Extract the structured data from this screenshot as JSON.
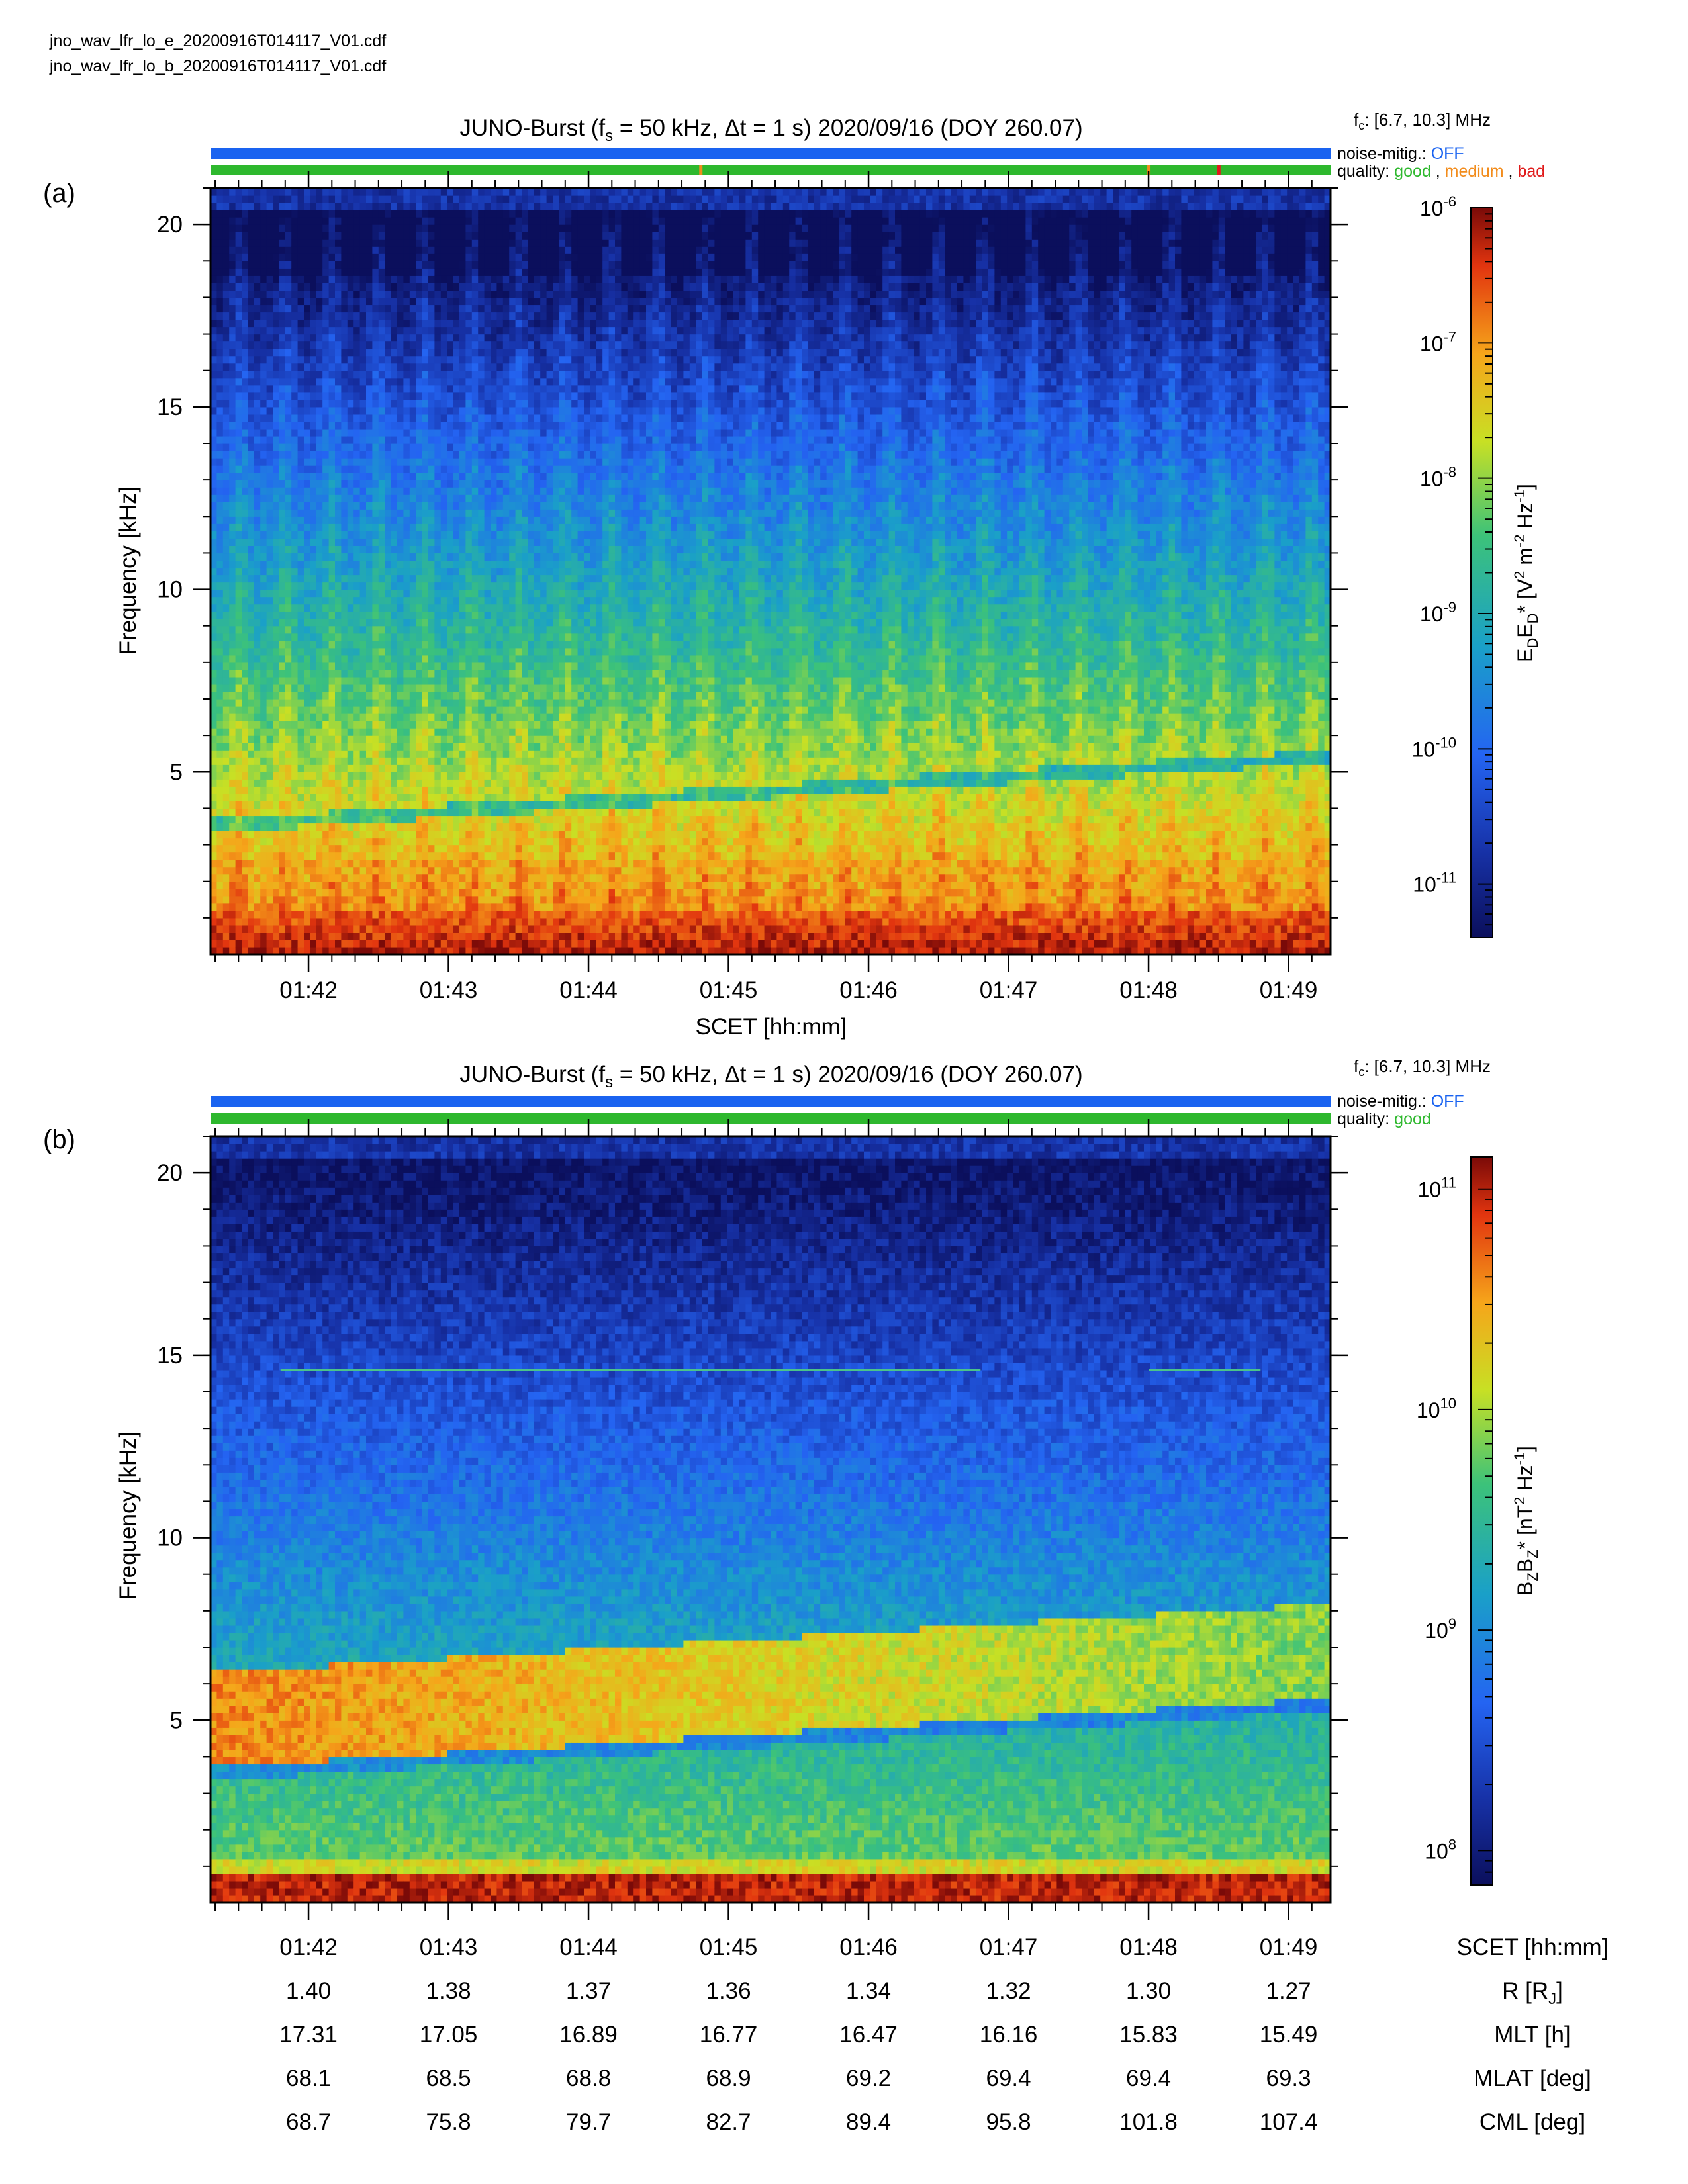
{
  "files": [
    "jno_wav_lfr_lo_e_20200916T014117_V01.cdf",
    "jno_wav_lfr_lo_b_20200916T014117_V01.cdf"
  ],
  "legend": {
    "noise_label": "noise-mitig.:",
    "noise_value": "OFF",
    "quality_label": "quality:",
    "good": "good",
    "medium": "medium",
    "bad": "bad",
    "comma": ","
  },
  "colors": {
    "noise_bar": "#1a63f0",
    "good": "#2eb82e",
    "medium": "#f28c1c",
    "bad": "#e01b1b"
  },
  "chart_data": [
    {
      "type": "heatmap",
      "panel": "(a)",
      "title": "JUNO-Burst (f_s = 50 kHz, Δt = 1 s)  2020/09/16 (DOY 260.07)",
      "fc": "[6.7, 10.3] MHz",
      "xlabel": "SCET [hh:mm]",
      "ylabel": "Frequency [kHz]",
      "x_ticks": [
        "01:42",
        "01:43",
        "01:44",
        "01:45",
        "01:46",
        "01:47",
        "01:48",
        "01:49"
      ],
      "x_range_min": [
        1.3,
        9.3
      ],
      "y_ticks": [
        5,
        10,
        15,
        20
      ],
      "ylim": [
        0,
        21
      ],
      "quality_marks": [
        {
          "x_min": 4.8,
          "level": "medium"
        },
        {
          "x_min": 8.0,
          "level": "medium"
        },
        {
          "x_min": 8.5,
          "level": "bad"
        }
      ],
      "colorbar": {
        "label": "E_D E_D* [V^2 m^-2 Hz^-1]",
        "scale": "log",
        "range": [
          4e-12,
          1e-06
        ],
        "ticks": [
          "-6",
          "-7",
          "-8",
          "-9",
          "-10",
          "-11"
        ]
      },
      "features": {
        "cutoff_start_khz": 3.7,
        "cutoff_end_khz": 5.6,
        "bursts": "vertical striations ~every 20 s"
      }
    },
    {
      "type": "heatmap",
      "panel": "(b)",
      "title": "JUNO-Burst (f_s = 50 kHz, Δt = 1 s)  2020/09/16 (DOY 260.07)",
      "fc": "[6.7, 10.3] MHz",
      "ylabel": "Frequency [kHz]",
      "x_ticks": [
        "01:42",
        "01:43",
        "01:44",
        "01:45",
        "01:46",
        "01:47",
        "01:48",
        "01:49"
      ],
      "y_ticks": [
        5,
        10,
        15,
        20
      ],
      "ylim": [
        0,
        21
      ],
      "colorbar": {
        "label": "B_Z B_Z* [nT^2 Hz^-1]",
        "scale": "log",
        "range": [
          70000000.0,
          140000000000.0
        ],
        "ticks": [
          "11",
          "10",
          "9",
          "8"
        ]
      },
      "features": {
        "cutoff_start_khz": 3.7,
        "cutoff_end_khz": 5.6,
        "line_khz": 14.6
      }
    }
  ],
  "ephemeris": {
    "rows": [
      {
        "label": "SCET [hh:mm]",
        "values": [
          "01:42",
          "01:43",
          "01:44",
          "01:45",
          "01:46",
          "01:47",
          "01:48",
          "01:49"
        ]
      },
      {
        "label": "R [R_J]",
        "values": [
          "1.40",
          "1.38",
          "1.37",
          "1.36",
          "1.34",
          "1.32",
          "1.30",
          "1.27"
        ]
      },
      {
        "label": "MLT [h]",
        "values": [
          "17.31",
          "17.05",
          "16.89",
          "16.77",
          "16.47",
          "16.16",
          "15.83",
          "15.49"
        ]
      },
      {
        "label": "MLAT [deg]",
        "values": [
          "68.1",
          "68.5",
          "68.8",
          "68.9",
          "69.2",
          "69.4",
          "69.4",
          "69.3"
        ]
      },
      {
        "label": "CML [deg]",
        "values": [
          "68.7",
          "75.8",
          "79.7",
          "82.7",
          "89.4",
          "95.8",
          "101.8",
          "107.4"
        ]
      }
    ]
  }
}
